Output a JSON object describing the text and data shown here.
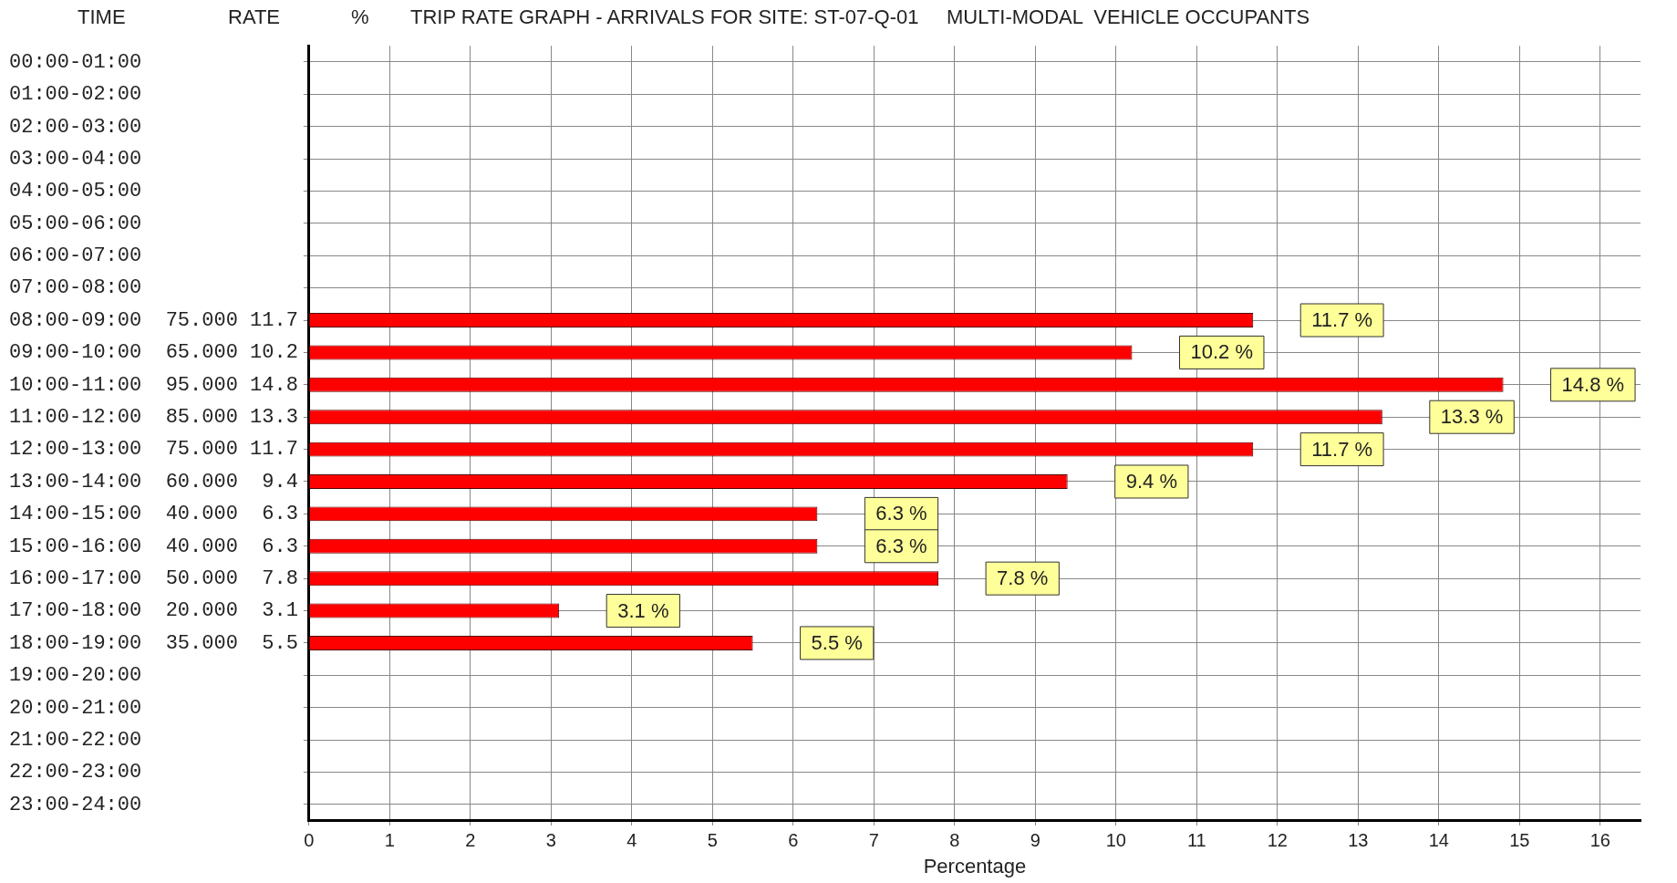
{
  "chart_data": {
    "type": "bar",
    "orientation": "horizontal",
    "title": "TRIP RATE GRAPH - ARRIVALS FOR SITE: ST-07-Q-01     MULTI-MODAL  VEHICLE OCCUPANTS",
    "annotations": [
      "TIME",
      "RATE",
      "%"
    ],
    "xlabel": "Percentage",
    "categories": [
      "00:00-01:00",
      "01:00-02:00",
      "02:00-03:00",
      "03:00-04:00",
      "04:00-05:00",
      "05:00-06:00",
      "06:00-07:00",
      "07:00-08:00",
      "08:00-09:00  75.000 11.7",
      "09:00-10:00  65.000 10.2",
      "10:00-11:00  95.000 14.8",
      "11:00-12:00  85.000 13.3",
      "12:00-13:00  75.000 11.7",
      "13:00-14:00  60.000  9.4",
      "14:00-15:00  40.000  6.3",
      "15:00-16:00  40.000  6.3",
      "16:00-17:00  50.000  7.8",
      "17:00-18:00  20.000  3.1",
      "18:00-19:00  35.000  5.5",
      "19:00-20:00",
      "20:00-21:00",
      "21:00-22:00",
      "22:00-23:00",
      "23:00-24:00"
    ],
    "values": [
      null,
      null,
      null,
      null,
      null,
      null,
      null,
      null,
      11.7,
      10.2,
      14.8,
      13.3,
      11.7,
      9.4,
      6.3,
      6.3,
      7.8,
      3.1,
      5.5,
      null,
      null,
      null,
      null,
      null
    ],
    "value_labels": [
      null,
      null,
      null,
      null,
      null,
      null,
      null,
      null,
      "11.7 %",
      "10.2 %",
      "14.8 %",
      "13.3 %",
      "11.7 %",
      "9.4 %",
      "6.3 %",
      "6.3 %",
      "7.8 %",
      "3.1 %",
      "5.5 %",
      null,
      null,
      null,
      null,
      null
    ],
    "color": "#ff0000",
    "xlim": [
      0,
      16.5
    ],
    "xticks": [
      0,
      1,
      2,
      3,
      4,
      5,
      6,
      7,
      8,
      9,
      10,
      11,
      12,
      13,
      14,
      15,
      16
    ],
    "grid": true,
    "legend": false
  }
}
